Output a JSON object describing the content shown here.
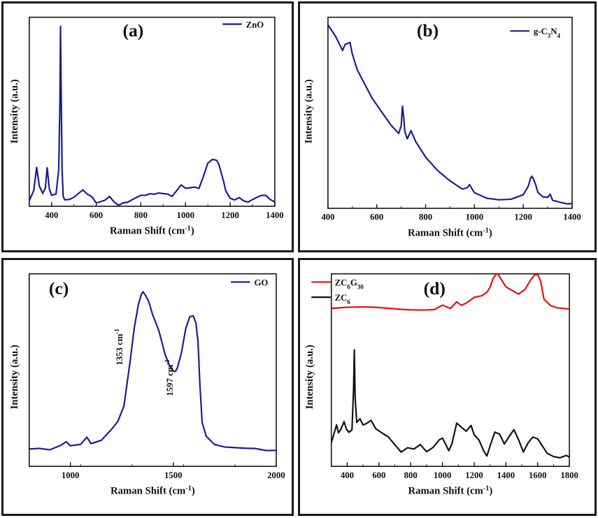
{
  "chart_data": [
    {
      "id": "a",
      "type": "line",
      "panel_label": "(a)",
      "xlabel": "Raman Shift (cm⁻¹)",
      "ylabel": "Intensity (a.u.)",
      "xlim": [
        300,
        1400
      ],
      "ylim": [
        0,
        100
      ],
      "xticks": [
        400,
        600,
        800,
        1000,
        1200,
        1400
      ],
      "x_minor_step": 100,
      "legend_position": "top-right",
      "series": [
        {
          "name": "ZnO",
          "color": "#1a1a8c",
          "x": [
            300,
            320,
            333,
            345,
            360,
            372,
            380,
            390,
            400,
            420,
            432,
            437,
            440,
            443,
            447,
            452,
            460,
            480,
            500,
            520,
            540,
            560,
            580,
            600,
            620,
            640,
            660,
            680,
            700,
            720,
            740,
            760,
            780,
            800,
            820,
            840,
            860,
            880,
            900,
            920,
            940,
            960,
            980,
            1000,
            1020,
            1040,
            1060,
            1080,
            1100,
            1120,
            1130,
            1140,
            1150,
            1160,
            1170,
            1180,
            1200,
            1220,
            1240,
            1260,
            1280,
            1300,
            1320,
            1340,
            1360,
            1380,
            1400
          ],
          "y": [
            3,
            8,
            20,
            10,
            6,
            9,
            20,
            9,
            6,
            7,
            20,
            55,
            96,
            60,
            20,
            5,
            3,
            3,
            4,
            6,
            8,
            6,
            5,
            2,
            3,
            4,
            6,
            3,
            1,
            2,
            2,
            3,
            4,
            5,
            5,
            6,
            6,
            7,
            7,
            7,
            6,
            9,
            12,
            10,
            10,
            10,
            9,
            15,
            22,
            24,
            24,
            24,
            22,
            18,
            14,
            9,
            5,
            4,
            5,
            3,
            2,
            3,
            4,
            5,
            5,
            3,
            2
          ]
        }
      ]
    },
    {
      "id": "b",
      "type": "line",
      "panel_label": "(b)",
      "xlabel": "Raman Shift (cm⁻¹)",
      "ylabel": "Intensity (a.u.)",
      "xlim": [
        400,
        1400
      ],
      "ylim": [
        0,
        100
      ],
      "xticks": [
        400,
        600,
        800,
        1000,
        1200,
        1400
      ],
      "x_minor_step": 100,
      "legend_position": "top-right",
      "series": [
        {
          "name": "g-C₃N₄",
          "color": "#1a1a8c",
          "x": [
            400,
            430,
            460,
            470,
            490,
            500,
            520,
            550,
            580,
            620,
            660,
            690,
            700,
            705,
            710,
            715,
            725,
            740,
            760,
            800,
            850,
            900,
            950,
            970,
            980,
            990,
            1000,
            1050,
            1100,
            1150,
            1200,
            1220,
            1230,
            1235,
            1240,
            1250,
            1260,
            1280,
            1300,
            1310,
            1320,
            1350,
            1380,
            1400
          ],
          "y": [
            96,
            90,
            82,
            85,
            86,
            80,
            72,
            65,
            58,
            51,
            44,
            40,
            44,
            54,
            48,
            40,
            36,
            40,
            34,
            26,
            19,
            14,
            10,
            11,
            13,
            11,
            9,
            6,
            5,
            5,
            7,
            11,
            15,
            16,
            15,
            12,
            8,
            6,
            6,
            8,
            5,
            4,
            3,
            3
          ]
        }
      ]
    },
    {
      "id": "c",
      "type": "line",
      "panel_label": "(c)",
      "xlabel": "Raman Shift (cm⁻¹)",
      "ylabel": "Intensity (a.u.)",
      "xlim": [
        800,
        2000
      ],
      "ylim": [
        0,
        100
      ],
      "xticks": [
        1000,
        1500,
        2000
      ],
      "x_minor_step": 250,
      "legend_position": "top-right",
      "annotations": [
        {
          "text": "1353 cm⁻¹",
          "x": 1353,
          "y": 62
        },
        {
          "text": "1597 cm⁻¹",
          "x": 1597,
          "y": 46
        }
      ],
      "series": [
        {
          "name": "GO",
          "color": "#1a1a8c",
          "x": [
            800,
            850,
            900,
            950,
            980,
            1000,
            1050,
            1080,
            1100,
            1150,
            1200,
            1230,
            1260,
            1290,
            1310,
            1330,
            1345,
            1353,
            1365,
            1380,
            1400,
            1430,
            1460,
            1480,
            1500,
            1510,
            1520,
            1540,
            1560,
            1580,
            1597,
            1610,
            1620,
            1630,
            1640,
            1660,
            1700,
            1750,
            1800,
            1850,
            1900,
            1950,
            2000
          ],
          "y": [
            9,
            9,
            8,
            10,
            12,
            10,
            11,
            15,
            12,
            14,
            20,
            24,
            32,
            55,
            72,
            84,
            89,
            90,
            88,
            85,
            78,
            70,
            58,
            53,
            50,
            50,
            52,
            60,
            72,
            78,
            78,
            74,
            64,
            40,
            22,
            15,
            11,
            10,
            10,
            10,
            10,
            9,
            9
          ]
        }
      ]
    },
    {
      "id": "d",
      "type": "line",
      "panel_label": "(d)",
      "xlabel": "Raman Shift (cm⁻¹)",
      "ylabel": "Intensity (a.u.)",
      "xlim": [
        300,
        1800
      ],
      "ylim": [
        0,
        100
      ],
      "xticks": [
        400,
        600,
        800,
        1000,
        1200,
        1400,
        1600,
        1800
      ],
      "x_minor_step": 100,
      "legend_position": "top-left",
      "series": [
        {
          "name": "ZC₆G₃₀",
          "color": "#e01010",
          "x": [
            300,
            350,
            400,
            450,
            500,
            550,
            600,
            650,
            700,
            750,
            800,
            850,
            900,
            950,
            1000,
            1050,
            1090,
            1120,
            1150,
            1200,
            1250,
            1280,
            1300,
            1320,
            1345,
            1370,
            1400,
            1440,
            1480,
            1520,
            1550,
            1580,
            1600,
            1620,
            1640,
            1680,
            1720,
            1760,
            1800
          ],
          "y": [
            82,
            82,
            82,
            82,
            82,
            82,
            82,
            82,
            82,
            82,
            82,
            82,
            82,
            82,
            84,
            82,
            85,
            83,
            84,
            87,
            88,
            90,
            93,
            98,
            101,
            98,
            94,
            92,
            90,
            92,
            96,
            99,
            99,
            95,
            86,
            83,
            82,
            82,
            82
          ]
        },
        {
          "name": "ZC₆",
          "color": "#111111",
          "x": [
            300,
            320,
            333,
            345,
            360,
            380,
            395,
            410,
            430,
            440,
            445,
            450,
            460,
            480,
            500,
            520,
            550,
            580,
            620,
            660,
            700,
            740,
            780,
            820,
            860,
            900,
            940,
            980,
            1000,
            1020,
            1040,
            1060,
            1090,
            1120,
            1150,
            1180,
            1200,
            1230,
            1260,
            1280,
            1300,
            1330,
            1360,
            1390,
            1420,
            1450,
            1480,
            1510,
            1540,
            1570,
            1600,
            1630,
            1660,
            1700,
            1740,
            1780,
            1800
          ],
          "y": [
            12,
            18,
            22,
            18,
            20,
            24,
            20,
            18,
            19,
            40,
            60,
            35,
            22,
            24,
            21,
            22,
            24,
            20,
            18,
            16,
            12,
            8,
            10,
            9,
            11,
            7,
            9,
            13,
            14,
            11,
            8,
            12,
            23,
            21,
            19,
            22,
            17,
            14,
            8,
            5,
            10,
            17,
            16,
            11,
            15,
            19,
            14,
            8,
            13,
            16,
            15,
            11,
            7,
            5,
            4,
            5,
            4
          ]
        }
      ]
    }
  ]
}
